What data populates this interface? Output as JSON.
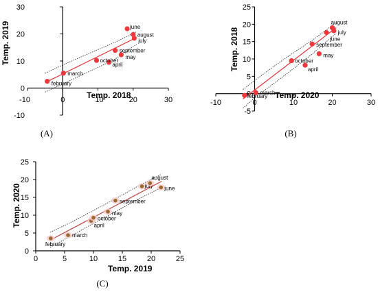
{
  "chart_data": [
    {
      "type": "scatter",
      "panel_label": "(A)",
      "xlabel": "Temp. 2018",
      "ylabel": "Temp. 2019",
      "xlim": [
        -10,
        30
      ],
      "ylim": [
        -10,
        30
      ],
      "xticks": [
        -10,
        0,
        10,
        20,
        30
      ],
      "yticks": [
        -10,
        0,
        10,
        20,
        30
      ],
      "marker_color": "#f0383c",
      "fit_color": "#f0383c",
      "ci_color": "#333333",
      "fit": {
        "x": [
          -5,
          21
        ],
        "y": [
          2.0,
          18.7
        ]
      },
      "ci_upper": {
        "x": [
          -5,
          0,
          5,
          10,
          15,
          21
        ],
        "y": [
          5.5,
          8.5,
          11.4,
          14.2,
          17.0,
          20.8
        ]
      },
      "ci_lower": {
        "x": [
          -5,
          0,
          5,
          10,
          15,
          21
        ],
        "y": [
          -1.5,
          1.5,
          4.6,
          7.6,
          10.8,
          16.2
        ]
      },
      "points": [
        {
          "label": "february",
          "x": -4.4,
          "y": 2.5
        },
        {
          "label": "march",
          "x": 0.2,
          "y": 5.5
        },
        {
          "label": "april",
          "x": 13.1,
          "y": 9.5
        },
        {
          "label": "october",
          "x": 9.6,
          "y": 10.2
        },
        {
          "label": "may",
          "x": 16.6,
          "y": 12.3
        },
        {
          "label": "september",
          "x": 14.9,
          "y": 13.9
        },
        {
          "label": "july",
          "x": 20.3,
          "y": 18.4
        },
        {
          "label": "august",
          "x": 20.0,
          "y": 19.8
        },
        {
          "label": "june",
          "x": 18.3,
          "y": 21.9
        }
      ]
    },
    {
      "type": "scatter",
      "panel_label": "(B)",
      "xlabel": "Temp. 2020",
      "ylabel": "Temp. 2018",
      "xlim": [
        -10,
        30
      ],
      "ylim": [
        -5,
        25
      ],
      "xticks": [
        -10,
        0,
        10,
        20,
        30
      ],
      "yticks": [
        -5,
        0,
        5,
        10,
        15,
        20,
        25
      ],
      "marker_color": "#f0383c",
      "fit_color": "#f0383c",
      "ci_color": "#333333",
      "fit": {
        "x": [
          -3,
          21
        ],
        "y": [
          -1.5,
          19.0
        ]
      },
      "ci_upper": {
        "x": [
          -3,
          0,
          5,
          10,
          15,
          21
        ],
        "y": [
          1.2,
          3.8,
          7.9,
          11.8,
          15.5,
          20.5
        ]
      },
      "ci_lower": {
        "x": [
          -3,
          0,
          5,
          10,
          15,
          21
        ],
        "y": [
          -4.2,
          -1.2,
          3.0,
          7.2,
          11.6,
          17.4
        ]
      },
      "points": [
        {
          "label": "february",
          "x": -2.6,
          "y": -0.5
        },
        {
          "label": "march",
          "x": 0.3,
          "y": 0.3
        },
        {
          "label": "april",
          "x": 13.0,
          "y": 8.2
        },
        {
          "label": "october",
          "x": 9.5,
          "y": 9.5
        },
        {
          "label": "may",
          "x": 16.6,
          "y": 11.5
        },
        {
          "label": "september",
          "x": 14.8,
          "y": 14.3
        },
        {
          "label": "june",
          "x": 18.5,
          "y": 17.6
        },
        {
          "label": "july",
          "x": 20.4,
          "y": 18.1
        },
        {
          "label": "august",
          "x": 20.0,
          "y": 19.0
        }
      ]
    },
    {
      "type": "scatter",
      "panel_label": "(C)",
      "xlabel": "Temp. 2019",
      "ylabel": "Temp. 2020",
      "xlim": [
        0,
        25
      ],
      "ylim": [
        0,
        25
      ],
      "xticks": [
        0,
        5,
        10,
        15,
        20,
        25
      ],
      "yticks": [
        0,
        5,
        10,
        15,
        20,
        25
      ],
      "marker_color": "#9a6b2f",
      "halo_color": "#f7c9cc",
      "fit_color": "#c24a4a",
      "ci_color": "#333333",
      "fit": {
        "x": [
          2.5,
          21.8
        ],
        "y": [
          3.0,
          19.5
        ]
      },
      "ci_upper": {
        "x": [
          2.5,
          6,
          10,
          14,
          18,
          21.8
        ],
        "y": [
          5.2,
          7.9,
          11.3,
          14.8,
          18.4,
          21.5
        ]
      },
      "ci_lower": {
        "x": [
          2.5,
          6,
          10,
          14,
          18,
          21.8
        ],
        "y": [
          1.0,
          4.1,
          7.7,
          11.2,
          14.7,
          17.8
        ]
      },
      "points": [
        {
          "label": "february",
          "x": 2.6,
          "y": 3.5
        },
        {
          "label": "march",
          "x": 5.6,
          "y": 4.4
        },
        {
          "label": "april",
          "x": 9.6,
          "y": 8.4
        },
        {
          "label": "october",
          "x": 10.0,
          "y": 9.3
        },
        {
          "label": "may",
          "x": 12.5,
          "y": 11.0
        },
        {
          "label": "september",
          "x": 13.8,
          "y": 14.1
        },
        {
          "label": "july",
          "x": 18.4,
          "y": 18.1
        },
        {
          "label": "august",
          "x": 19.8,
          "y": 19.0
        },
        {
          "label": "june",
          "x": 21.7,
          "y": 17.8
        }
      ]
    }
  ]
}
